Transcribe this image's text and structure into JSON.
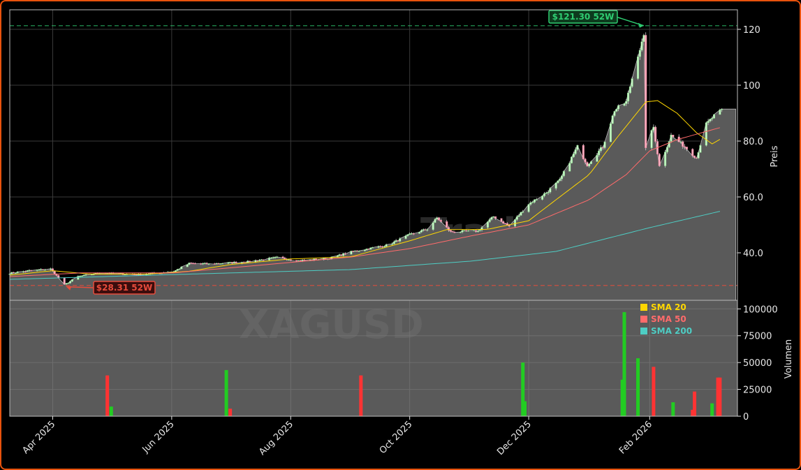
{
  "chart_data": {
    "type": "candlestick",
    "symbol": "XAGUSD",
    "watermark_brand": "Trade",
    "price_panel": {
      "ylabel": "Preis",
      "ylim": [
        23,
        127
      ],
      "yticks": [
        "40.0",
        "60.0",
        "80.0",
        "100",
        "120"
      ],
      "ytick_values": [
        40,
        60,
        80,
        100,
        120
      ],
      "grid": true
    },
    "volume_panel": {
      "ylabel": "Volumen",
      "ylim": [
        0,
        108000
      ],
      "yticks": [
        "0",
        "25000",
        "50000",
        "75000",
        "100000"
      ],
      "ytick_values": [
        0,
        25000,
        50000,
        75000,
        100000
      ]
    },
    "x_axis": {
      "range": [
        "2025-03-10",
        "2026-03-18"
      ],
      "tick_dates": [
        "2025-04-01",
        "2025-06-01",
        "2025-08-01",
        "2025-10-01",
        "2025-12-01",
        "2026-02-01"
      ],
      "tick_labels": [
        "Apr 2025",
        "Jun 2025",
        "Aug 2025",
        "Oct 2025",
        "Dec 2025",
        "Feb 2026"
      ],
      "rotation": 45
    },
    "annotations": {
      "high": {
        "label": "$121.30 52W",
        "value": 121.3,
        "date": "2026-01-29"
      },
      "low": {
        "label": "$28.31 52W",
        "value": 28.31,
        "date": "2025-04-07"
      }
    },
    "legend": {
      "placement": "upper-right of volume panel",
      "items": [
        {
          "label": "SMA 20",
          "color": "#ffd700"
        },
        {
          "label": "SMA 50",
          "color": "#ff6b6b"
        },
        {
          "label": "SMA 200",
          "color": "#4ecdc4"
        }
      ]
    },
    "colors": {
      "up": "#22cc22",
      "down": "#ff3333",
      "sma20": "#ffd700",
      "sma50": "#ff6b6b",
      "sma200": "#4ecdc4",
      "area": "#5a5a5a",
      "high_line": "#2ecc71",
      "low_line": "#e74c3c"
    },
    "price_anchors": [
      [
        "2025-03-10",
        32.7
      ],
      [
        "2025-03-20",
        33.6
      ],
      [
        "2025-03-31",
        34.2
      ],
      [
        "2025-04-04",
        31.0
      ],
      [
        "2025-04-07",
        28.5
      ],
      [
        "2025-04-14",
        31.5
      ],
      [
        "2025-04-25",
        32.8
      ],
      [
        "2025-05-15",
        32.2
      ],
      [
        "2025-06-02",
        33.3
      ],
      [
        "2025-06-10",
        36.2
      ],
      [
        "2025-06-20",
        36.0
      ],
      [
        "2025-07-10",
        36.8
      ],
      [
        "2025-07-25",
        38.3
      ],
      [
        "2025-08-05",
        37.2
      ],
      [
        "2025-08-20",
        37.9
      ],
      [
        "2025-09-02",
        40.5
      ],
      [
        "2025-09-20",
        42.8
      ],
      [
        "2025-10-01",
        46.5
      ],
      [
        "2025-10-10",
        48.5
      ],
      [
        "2025-10-15",
        52.5
      ],
      [
        "2025-10-22",
        47.5
      ],
      [
        "2025-11-05",
        47.8
      ],
      [
        "2025-11-13",
        53.0
      ],
      [
        "2025-11-21",
        49.5
      ],
      [
        "2025-12-01",
        57.5
      ],
      [
        "2025-12-10",
        61.5
      ],
      [
        "2025-12-17",
        66.0
      ],
      [
        "2025-12-26",
        78.0
      ],
      [
        "2025-12-31",
        71.5
      ],
      [
        "2026-01-08",
        78.0
      ],
      [
        "2026-01-14",
        91.0
      ],
      [
        "2026-01-20",
        94.0
      ],
      [
        "2026-01-26",
        111.0
      ],
      [
        "2026-01-29",
        117.0
      ],
      [
        "2026-01-30",
        78.0
      ],
      [
        "2026-02-03",
        85.0
      ],
      [
        "2026-02-06",
        71.0
      ],
      [
        "2026-02-12",
        82.0
      ],
      [
        "2026-02-19",
        78.0
      ],
      [
        "2026-02-25",
        74.0
      ],
      [
        "2026-03-02",
        86.0
      ],
      [
        "2026-03-06",
        89.0
      ],
      [
        "2026-03-10",
        91.0
      ]
    ],
    "sma20_anchors": [
      [
        "2025-03-10",
        32.0
      ],
      [
        "2025-04-01",
        33.6
      ],
      [
        "2025-04-20",
        32.4
      ],
      [
        "2025-05-20",
        32.4
      ],
      [
        "2025-06-10",
        33.4
      ],
      [
        "2025-07-01",
        35.8
      ],
      [
        "2025-08-01",
        37.8
      ],
      [
        "2025-09-01",
        38.6
      ],
      [
        "2025-10-01",
        44.3
      ],
      [
        "2025-10-20",
        48.3
      ],
      [
        "2025-11-10",
        48.4
      ],
      [
        "2025-12-01",
        51.5
      ],
      [
        "2025-12-15",
        59.0
      ],
      [
        "2026-01-01",
        68.0
      ],
      [
        "2026-01-15",
        81.0
      ],
      [
        "2026-01-30",
        94.0
      ],
      [
        "2026-02-05",
        94.5
      ],
      [
        "2026-02-15",
        90.0
      ],
      [
        "2026-02-25",
        83.0
      ],
      [
        "2026-03-05",
        79.0
      ],
      [
        "2026-03-10",
        81.0
      ]
    ],
    "sma50_anchors": [
      [
        "2025-03-10",
        31.5
      ],
      [
        "2025-04-15",
        32.8
      ],
      [
        "2025-06-01",
        32.8
      ],
      [
        "2025-07-15",
        35.5
      ],
      [
        "2025-09-01",
        38.5
      ],
      [
        "2025-10-01",
        41.5
      ],
      [
        "2025-11-01",
        46.0
      ],
      [
        "2025-12-01",
        50.0
      ],
      [
        "2026-01-01",
        59.0
      ],
      [
        "2026-01-20",
        68.0
      ],
      [
        "2026-02-01",
        76.5
      ],
      [
        "2026-02-15",
        80.5
      ],
      [
        "2026-03-10",
        85.0
      ]
    ],
    "sma200_anchors": [
      [
        "2025-03-10",
        30.5
      ],
      [
        "2025-06-01",
        32.2
      ],
      [
        "2025-09-01",
        34.0
      ],
      [
        "2025-11-01",
        37.0
      ],
      [
        "2025-12-15",
        40.5
      ],
      [
        "2026-01-15",
        46.0
      ],
      [
        "2026-02-01",
        49.0
      ],
      [
        "2026-03-10",
        55.0
      ]
    ],
    "volume_bars": [
      {
        "date": "2025-04-29",
        "value": 38000,
        "dir": "down"
      },
      {
        "date": "2025-05-01",
        "value": 9000,
        "dir": "up"
      },
      {
        "date": "2025-06-29",
        "value": 43000,
        "dir": "up"
      },
      {
        "date": "2025-07-01",
        "value": 7000,
        "dir": "down"
      },
      {
        "date": "2025-09-06",
        "value": 38000,
        "dir": "down"
      },
      {
        "date": "2025-11-28",
        "value": 50000,
        "dir": "up"
      },
      {
        "date": "2025-11-29",
        "value": 14000,
        "dir": "up"
      },
      {
        "date": "2026-01-18",
        "value": 34000,
        "dir": "up"
      },
      {
        "date": "2026-01-19",
        "value": 97000,
        "dir": "up"
      },
      {
        "date": "2026-01-26",
        "value": 54000,
        "dir": "up"
      },
      {
        "date": "2026-02-03",
        "value": 46000,
        "dir": "down"
      },
      {
        "date": "2026-02-13",
        "value": 13000,
        "dir": "up"
      },
      {
        "date": "2026-02-23",
        "value": 6000,
        "dir": "down"
      },
      {
        "date": "2026-02-24",
        "value": 23000,
        "dir": "down"
      },
      {
        "date": "2026-03-05",
        "value": 12000,
        "dir": "up"
      },
      {
        "date": "2026-03-08",
        "value": 36000,
        "dir": "down"
      },
      {
        "date": "2026-03-09",
        "value": 36000,
        "dir": "down"
      }
    ]
  }
}
